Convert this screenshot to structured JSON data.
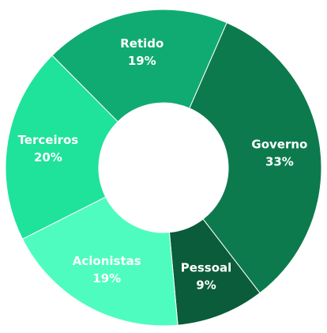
{
  "chart_data": {
    "type": "donut",
    "categories": [
      "Governo",
      "Pessoal",
      "Acionistas",
      "Terceiros",
      "Retido"
    ],
    "values": [
      33,
      9,
      19,
      20,
      19
    ],
    "value_labels": [
      "33%",
      "9%",
      "19%",
      "20%",
      "19%"
    ],
    "colors": [
      "#0d7a4d",
      "#0a5c3a",
      "#4ffcbf",
      "#1fe29b",
      "#10ab72"
    ]
  }
}
